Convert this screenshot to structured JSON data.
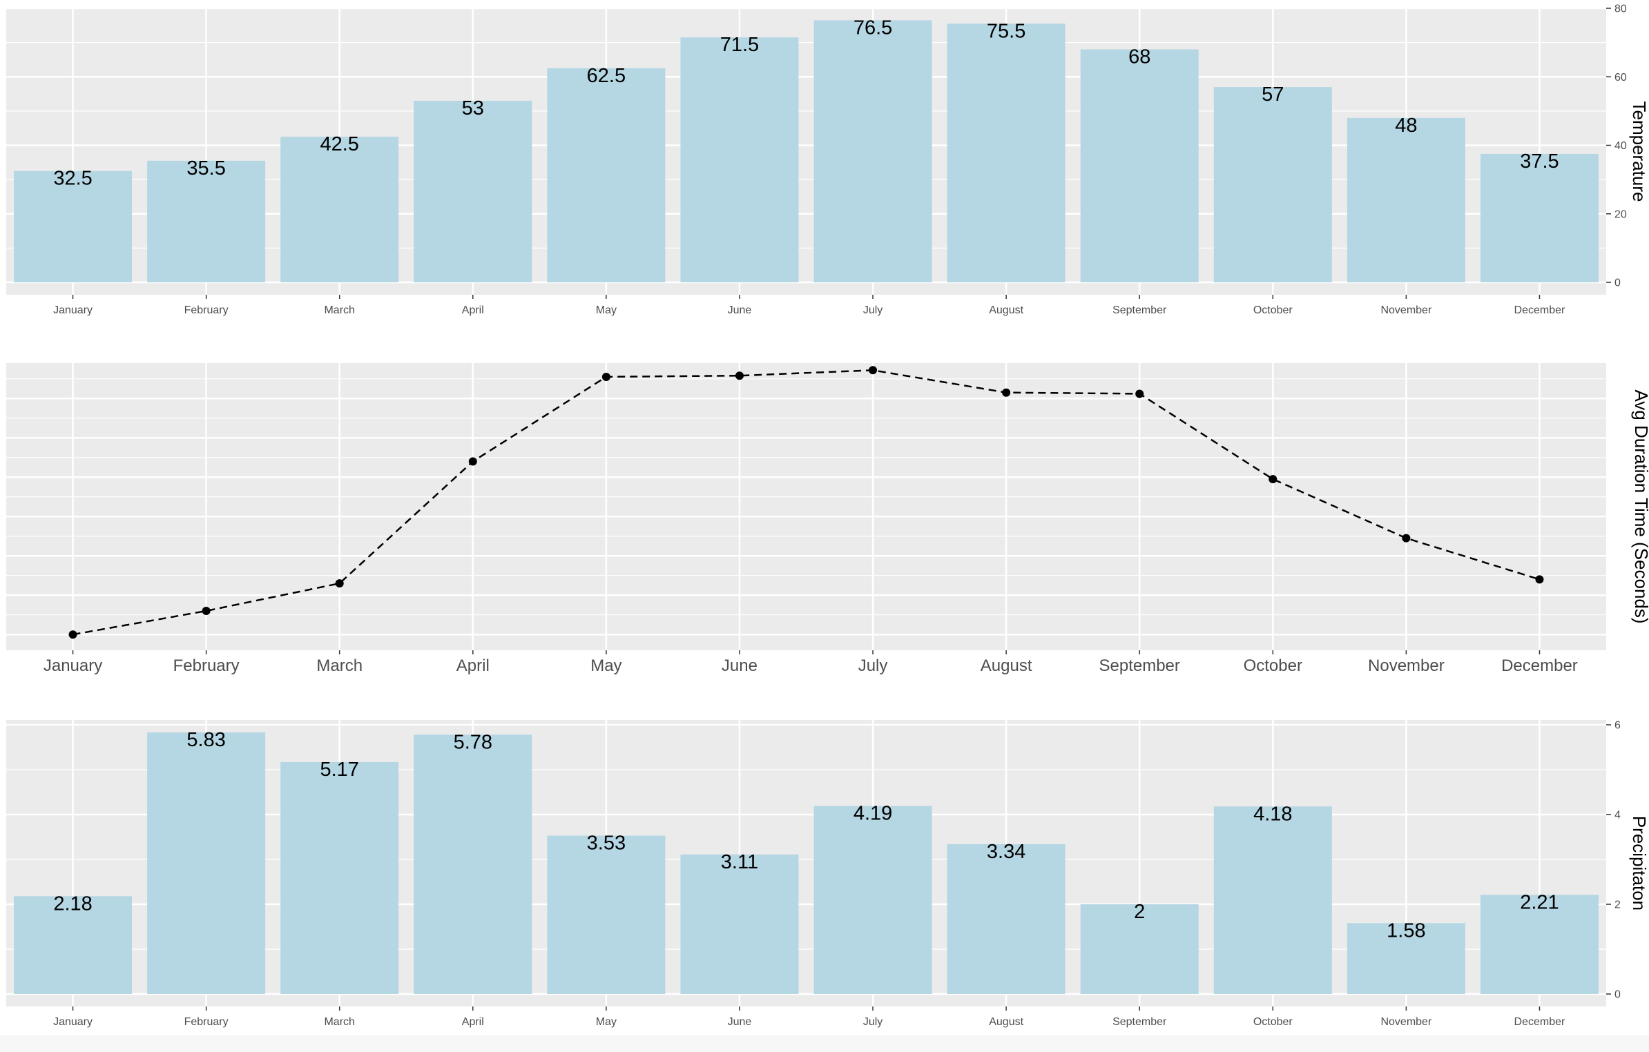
{
  "chart_data": [
    {
      "type": "bar",
      "categories": [
        "January",
        "February",
        "March",
        "April",
        "May",
        "June",
        "July",
        "August",
        "September",
        "October",
        "November",
        "December"
      ],
      "values": [
        32.5,
        35.5,
        42.5,
        53,
        62.5,
        71.5,
        76.5,
        75.5,
        68,
        57,
        48,
        37.5
      ],
      "data_labels": [
        "32.5",
        "35.5",
        "42.5",
        "53",
        "62.5",
        "71.5",
        "76.5",
        "75.5",
        "68",
        "57",
        "48",
        "37.5"
      ],
      "ylabel": "Temperature",
      "ylim": [
        0,
        80
      ],
      "yticks": [
        0,
        20,
        40,
        60,
        80
      ],
      "y_axis_position": "right",
      "grid": true,
      "bar_color": "#b5d6e3",
      "panel_color": "#ebebeb"
    },
    {
      "type": "line",
      "categories": [
        "January",
        "February",
        "March",
        "April",
        "May",
        "June",
        "July",
        "August",
        "September",
        "October",
        "November",
        "December"
      ],
      "values": [
        1,
        1.6,
        2.3,
        5.4,
        7.55,
        7.58,
        7.72,
        7.15,
        7.12,
        4.95,
        3.45,
        2.4
      ],
      "ylabel": "Avg Duration Time (Seconds)",
      "ylim": [
        0.6,
        7.9
      ],
      "y_axis_position": "right",
      "line_style": "dashed",
      "grid": true,
      "line_color": "#000000",
      "panel_color": "#ebebeb"
    },
    {
      "type": "bar",
      "categories": [
        "January",
        "February",
        "March",
        "April",
        "May",
        "June",
        "July",
        "August",
        "September",
        "October",
        "November",
        "December"
      ],
      "values": [
        2.18,
        5.83,
        5.17,
        5.78,
        3.53,
        3.11,
        4.19,
        3.34,
        2,
        4.18,
        1.58,
        2.21
      ],
      "data_labels": [
        "2.18",
        "5.83",
        "5.17",
        "5.78",
        "3.53",
        "3.11",
        "4.19",
        "3.34",
        "2",
        "4.18",
        "1.58",
        "2.21"
      ],
      "ylabel": "Precipitaton",
      "ylim": [
        0,
        6
      ],
      "yticks": [
        0,
        2,
        4,
        6
      ],
      "y_axis_position": "right",
      "grid": true,
      "bar_color": "#b5d6e3",
      "panel_color": "#ebebeb"
    }
  ]
}
